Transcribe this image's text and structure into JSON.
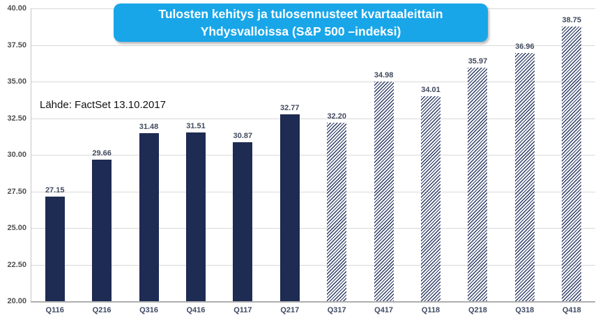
{
  "title": {
    "line1": "Tulosten kehitys ja tulosennusteet kvartaaleittain",
    "line2": "Yhdysvalloissa (S&P 500 –indeksi)"
  },
  "source_note": "Lähde: FactSet 13.10.2017",
  "colors": {
    "background": "#ffffff",
    "bar_solid": "#1e2b52",
    "bar_hatch": "#2e3c66",
    "title_bg": "#18a6e9",
    "title_text": "#ffffff",
    "grid": "#d9d9d9",
    "axis_line": "#c4c4c4",
    "axis_bottom_line": "#aeaeae",
    "axis_text": "#4f4f4f",
    "value_text": "#414a5e",
    "category_text": "#3f4a63",
    "source_text": "#111111"
  },
  "chart_data": {
    "type": "bar",
    "title": "Tulosten kehitys ja tulosennusteet kvartaaleittain Yhdysvalloissa (S&P 500 –indeksi)",
    "annotation": "Lähde: FactSet 13.10.2017",
    "categories": [
      "Q116",
      "Q216",
      "Q316",
      "Q416",
      "Q117",
      "Q217",
      "Q317",
      "Q417",
      "Q118",
      "Q218",
      "Q318",
      "Q418"
    ],
    "values": [
      27.15,
      29.66,
      31.48,
      31.51,
      30.87,
      32.77,
      32.2,
      34.98,
      34.01,
      35.97,
      36.96,
      38.75
    ],
    "bar_styles": [
      "solid",
      "solid",
      "solid",
      "solid",
      "solid",
      "solid",
      "hatched",
      "hatched",
      "hatched",
      "hatched",
      "hatched",
      "hatched"
    ],
    "ylim": [
      20,
      40
    ],
    "ytick_step": 2.5,
    "value_decimals": 2,
    "grid": true,
    "legend": "none",
    "xlabel": "",
    "ylabel": ""
  }
}
